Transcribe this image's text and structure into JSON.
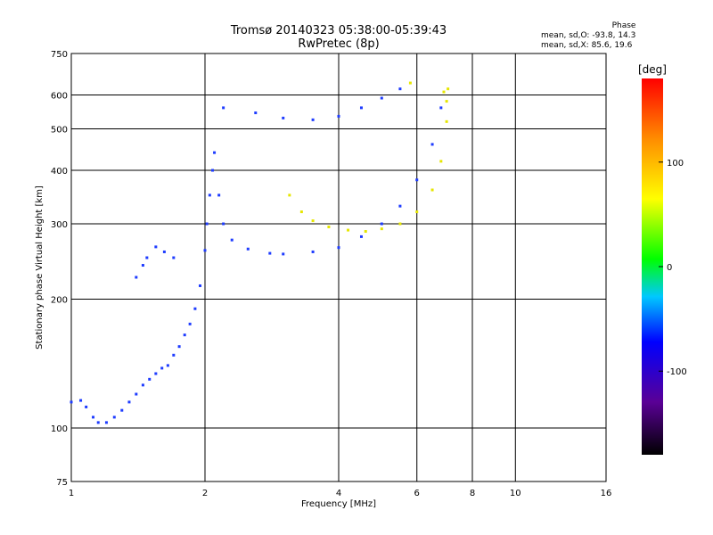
{
  "header": {
    "line1": "Tromsø 20140323 05:38:00-05:39:43",
    "line2": "RwPretec (8p)",
    "phase_title": "Phase",
    "phase_o": "mean, sd,O: -93.8, 14.3",
    "phase_x": "mean, sd,X:  85.6, 19.6"
  },
  "chart_data": {
    "type": "scatter",
    "xlabel": "Frequency [MHz]",
    "ylabel": "Stationary phase Virtual Height [km]",
    "xscale": "log",
    "yscale": "log",
    "xlim": [
      1,
      16
    ],
    "ylim": [
      75,
      750
    ],
    "xticks": [
      1,
      2,
      4,
      6,
      8,
      10,
      16
    ],
    "yticks": [
      75,
      100,
      200,
      300,
      400,
      500,
      600,
      750
    ],
    "grid": true,
    "colorbar": {
      "label": "[deg]",
      "range": [
        -180,
        180
      ],
      "ticks": [
        100,
        0,
        -100
      ],
      "colors": [
        "#000000",
        "#5a0096",
        "#0000ff",
        "#00c8ff",
        "#00ff00",
        "#ffff00",
        "#ff8c00",
        "#ff0000"
      ]
    },
    "series": [
      {
        "mode": "O",
        "color": "#1e3cff",
        "points": [
          [
            1.0,
            115
          ],
          [
            1.05,
            116
          ],
          [
            1.08,
            112
          ],
          [
            1.12,
            106
          ],
          [
            1.15,
            103
          ],
          [
            1.2,
            103
          ],
          [
            1.25,
            106
          ],
          [
            1.3,
            110
          ],
          [
            1.35,
            115
          ],
          [
            1.4,
            120
          ],
          [
            1.45,
            126
          ],
          [
            1.5,
            130
          ],
          [
            1.55,
            134
          ],
          [
            1.6,
            138
          ],
          [
            1.65,
            140
          ],
          [
            1.7,
            148
          ],
          [
            1.75,
            155
          ],
          [
            1.8,
            165
          ],
          [
            1.85,
            175
          ],
          [
            1.9,
            190
          ],
          [
            1.95,
            215
          ],
          [
            2.0,
            260
          ],
          [
            2.02,
            300
          ],
          [
            2.05,
            350
          ],
          [
            2.08,
            400
          ],
          [
            2.1,
            440
          ],
          [
            2.15,
            350
          ],
          [
            2.2,
            300
          ],
          [
            2.3,
            275
          ],
          [
            2.5,
            262
          ],
          [
            2.8,
            256
          ],
          [
            3.0,
            255
          ],
          [
            3.5,
            258
          ],
          [
            4.0,
            264
          ],
          [
            4.5,
            280
          ],
          [
            5.0,
            300
          ],
          [
            5.5,
            330
          ],
          [
            6.0,
            380
          ],
          [
            6.5,
            460
          ],
          [
            6.8,
            560
          ],
          [
            2.2,
            560
          ],
          [
            2.6,
            545
          ],
          [
            3.0,
            530
          ],
          [
            3.5,
            525
          ],
          [
            4.0,
            535
          ],
          [
            4.5,
            560
          ],
          [
            5.0,
            590
          ],
          [
            5.5,
            620
          ],
          [
            1.48,
            250
          ],
          [
            1.55,
            265
          ],
          [
            1.62,
            258
          ],
          [
            1.7,
            250
          ],
          [
            1.4,
            225
          ],
          [
            1.45,
            240
          ]
        ]
      },
      {
        "mode": "X",
        "color": "#e6e600",
        "points": [
          [
            3.1,
            350
          ],
          [
            3.3,
            320
          ],
          [
            3.5,
            305
          ],
          [
            3.8,
            295
          ],
          [
            4.2,
            290
          ],
          [
            4.6,
            288
          ],
          [
            5.0,
            292
          ],
          [
            5.5,
            300
          ],
          [
            6.0,
            320
          ],
          [
            6.5,
            360
          ],
          [
            6.8,
            420
          ],
          [
            7.0,
            520
          ],
          [
            7.05,
            620
          ],
          [
            5.8,
            640
          ],
          [
            6.9,
            610
          ],
          [
            7.0,
            580
          ]
        ]
      }
    ]
  }
}
